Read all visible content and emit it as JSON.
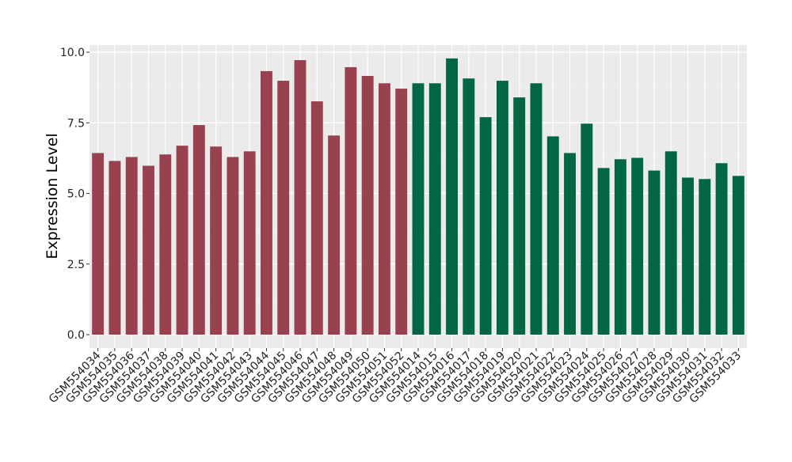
{
  "chart_data": {
    "type": "bar",
    "title": "",
    "xlabel": "",
    "ylabel": "Expression Level",
    "ylim": [
      0,
      10
    ],
    "yticks": [
      "0.0",
      "2.5",
      "5.0",
      "7.5",
      "10.0"
    ],
    "grid": true,
    "legend": "none",
    "categories": [
      "GSM554034",
      "GSM554035",
      "GSM554036",
      "GSM554037",
      "GSM554038",
      "GSM554039",
      "GSM554040",
      "GSM554041",
      "GSM554042",
      "GSM554043",
      "GSM554044",
      "GSM554045",
      "GSM554046",
      "GSM554047",
      "GSM554048",
      "GSM554049",
      "GSM554050",
      "GSM554051",
      "GSM554052",
      "GSM554014",
      "GSM554015",
      "GSM554016",
      "GSM554017",
      "GSM554018",
      "GSM554019",
      "GSM554020",
      "GSM554021",
      "GSM554022",
      "GSM554023",
      "GSM554024",
      "GSM554025",
      "GSM554026",
      "GSM554027",
      "GSM554028",
      "GSM554029",
      "GSM554030",
      "GSM554031",
      "GSM554032",
      "GSM554033"
    ],
    "values": [
      6.43,
      6.15,
      6.29,
      5.98,
      6.38,
      6.69,
      7.42,
      6.66,
      6.29,
      6.49,
      9.33,
      8.99,
      9.72,
      8.26,
      7.05,
      9.47,
      9.16,
      8.9,
      8.71,
      8.9,
      8.9,
      9.78,
      9.07,
      7.7,
      8.99,
      8.4,
      8.9,
      7.02,
      6.43,
      7.47,
      5.9,
      6.21,
      6.26,
      5.81,
      6.49,
      5.56,
      5.51,
      6.07,
      5.62
    ],
    "groups": [
      {
        "count": 19,
        "color": "#99414f"
      },
      {
        "count": 20,
        "color": "#006644"
      }
    ]
  }
}
